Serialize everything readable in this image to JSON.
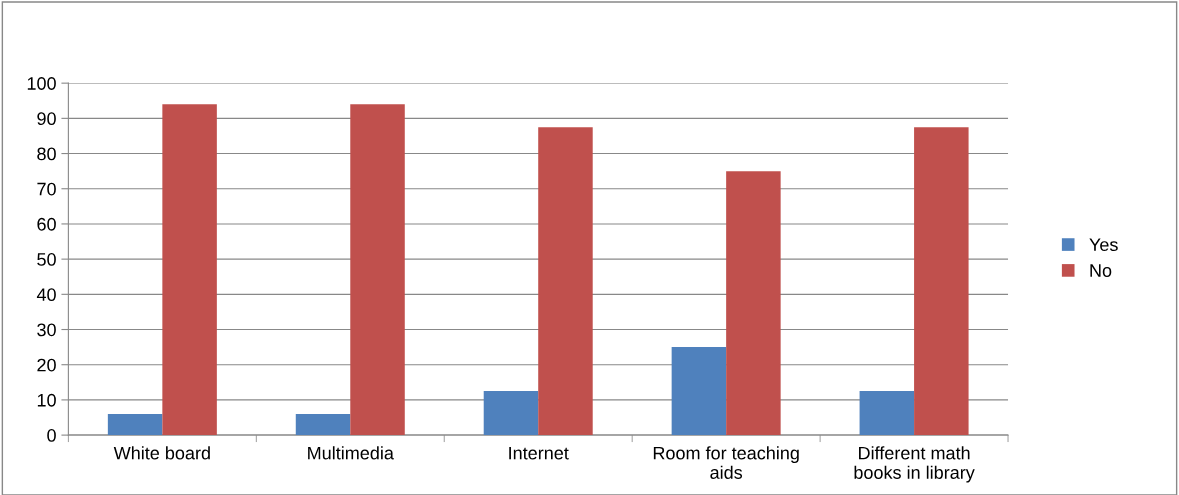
{
  "chart_data": {
    "type": "bar",
    "categories": [
      "White board",
      "Multimedia",
      "Internet",
      "Room for teaching aids",
      "Different math books in library"
    ],
    "series": [
      {
        "name": "Yes",
        "color": "#4f81bd",
        "values": [
          6,
          6,
          12.5,
          25,
          12.5
        ]
      },
      {
        "name": "No",
        "color": "#c0504d",
        "values": [
          94,
          94,
          87.5,
          75,
          87.5
        ]
      }
    ],
    "ylim": [
      0,
      100
    ],
    "yticks": [
      0,
      10,
      20,
      30,
      40,
      50,
      60,
      70,
      80,
      90,
      100
    ],
    "grid": "y",
    "legend": "right"
  }
}
